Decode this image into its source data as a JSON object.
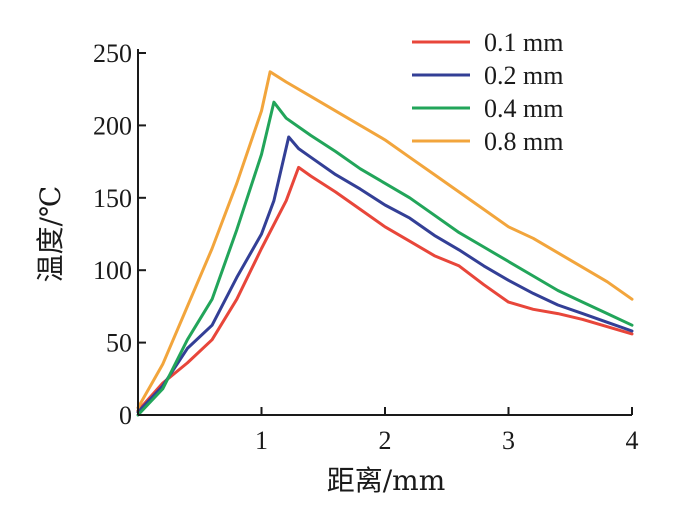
{
  "chart_data": {
    "type": "line",
    "xlabel": "距离/mm",
    "ylabel": "温度/℃",
    "xlim": [
      0,
      4
    ],
    "ylim": [
      0,
      250
    ],
    "xticks": [
      1,
      2,
      3,
      4
    ],
    "yticks": [
      0,
      50,
      100,
      150,
      200,
      250
    ],
    "grid": false,
    "legend_position": "top-right",
    "series": [
      {
        "name": "0.1 mm",
        "color": "#e8463a",
        "x": [
          0,
          0.2,
          0.4,
          0.6,
          0.8,
          1.0,
          1.2,
          1.3,
          1.4,
          1.6,
          1.8,
          2.0,
          2.2,
          2.4,
          2.6,
          2.8,
          3.0,
          3.2,
          3.4,
          3.6,
          3.8,
          4.0
        ],
        "y": [
          3,
          22,
          36,
          52,
          80,
          115,
          148,
          171,
          165,
          154,
          142,
          130,
          120,
          110,
          103,
          90,
          78,
          73,
          70,
          66,
          61,
          56
        ]
      },
      {
        "name": "0.2 mm",
        "color": "#333f96",
        "x": [
          0,
          0.2,
          0.4,
          0.6,
          0.8,
          1.0,
          1.1,
          1.22,
          1.3,
          1.4,
          1.6,
          1.8,
          2.0,
          2.2,
          2.4,
          2.6,
          2.8,
          3.0,
          3.2,
          3.4,
          3.6,
          3.8,
          4.0
        ],
        "y": [
          2,
          20,
          46,
          62,
          95,
          125,
          148,
          192,
          184,
          178,
          166,
          156,
          145,
          136,
          124,
          114,
          103,
          93,
          84,
          76,
          70,
          64,
          58
        ]
      },
      {
        "name": "0.4 mm",
        "color": "#22a55a",
        "x": [
          0,
          0.2,
          0.4,
          0.6,
          0.8,
          1.0,
          1.1,
          1.2,
          1.4,
          1.6,
          1.8,
          2.0,
          2.2,
          2.4,
          2.6,
          2.8,
          3.0,
          3.2,
          3.4,
          3.6,
          3.8,
          4.0
        ],
        "y": [
          0,
          18,
          52,
          80,
          128,
          180,
          216,
          205,
          193,
          182,
          170,
          160,
          150,
          138,
          126,
          116,
          106,
          96,
          86,
          78,
          70,
          62
        ]
      },
      {
        "name": "0.8 mm",
        "color": "#f2a53c",
        "x": [
          0,
          0.2,
          0.4,
          0.6,
          0.8,
          1.0,
          1.07,
          1.2,
          1.4,
          1.6,
          1.8,
          2.0,
          2.2,
          2.4,
          2.6,
          2.8,
          3.0,
          3.2,
          3.4,
          3.6,
          3.8,
          4.0
        ],
        "y": [
          5,
          35,
          75,
          115,
          160,
          210,
          237,
          230,
          220,
          210,
          200,
          190,
          178,
          166,
          154,
          142,
          130,
          122,
          112,
          102,
          92,
          80
        ]
      }
    ]
  }
}
